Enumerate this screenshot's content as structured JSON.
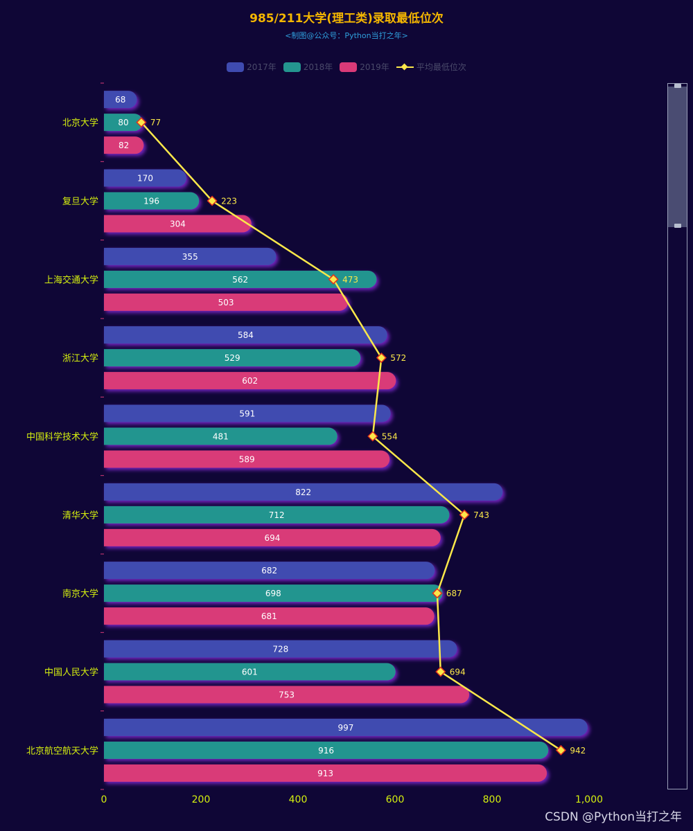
{
  "title": "985/211大学(理工类)录取最低位次",
  "subtitle": "<制图@公众号：Python当打之年>",
  "watermark": "CSDN @Python当打之年",
  "colors": {
    "background": "#0f0636",
    "title": "#f5b700",
    "subtitle": "#2f9fdc",
    "axis_label": "#d6f00f",
    "s2017": "#3f4bb0",
    "s2018": "#24958f",
    "s2019": "#d93a78",
    "avg": "#fbe84a"
  },
  "chart_data": {
    "type": "bar",
    "orientation": "horizontal",
    "title": "985/211大学(理工类)录取最低位次",
    "categories": [
      "北京大学",
      "复旦大学",
      "上海交通大学",
      "浙江大学",
      "中国科学技术大学",
      "清华大学",
      "南京大学",
      "中国人民大学",
      "北京航空航天大学"
    ],
    "series": [
      {
        "name": "2017年",
        "type": "bar",
        "values": [
          68,
          170,
          355,
          584,
          591,
          822,
          682,
          728,
          997
        ]
      },
      {
        "name": "2018年",
        "type": "bar",
        "values": [
          80,
          196,
          562,
          529,
          481,
          712,
          698,
          601,
          916
        ]
      },
      {
        "name": "2019年",
        "type": "bar",
        "values": [
          82,
          304,
          503,
          602,
          589,
          694,
          681,
          753,
          913
        ]
      },
      {
        "name": "平均最低位次",
        "type": "line",
        "values": [
          77,
          223,
          473,
          572,
          554,
          743,
          687,
          694,
          942
        ]
      }
    ],
    "xlim": [
      0,
      1000
    ],
    "xticks": [
      0,
      200,
      400,
      600,
      800,
      1000
    ],
    "xtick_labels": [
      "0",
      "200",
      "400",
      "600",
      "800",
      "1,000"
    ],
    "legend_position": "top-center",
    "grid": false
  }
}
